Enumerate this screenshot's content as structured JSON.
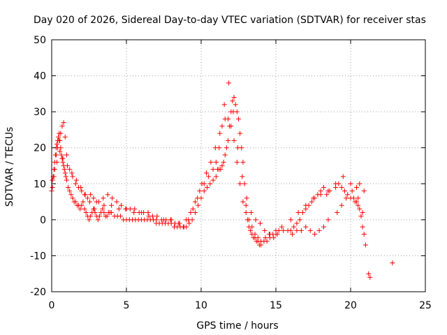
{
  "chart_data": {
    "type": "scatter",
    "title": "Day 020 of 2026, Sidereal Day-to-day VTEC variation (SDTVAR) for receiver stas",
    "xlabel": "GPS time / hours",
    "ylabel": "SDTVAR / TECUs",
    "xlim": [
      0,
      25
    ],
    "ylim": [
      -20,
      50
    ],
    "xticks": [
      "0",
      "5",
      "10",
      "15",
      "20",
      "25"
    ],
    "yticks": [
      "-20",
      "-10",
      "0",
      "10",
      "20",
      "30",
      "40",
      "50"
    ],
    "grid": true,
    "marker": "+",
    "color": "#ff0000",
    "series": [
      {
        "name": "SDTVAR",
        "x": [
          0.0,
          0.05,
          0.1,
          0.15,
          0.2,
          0.25,
          0.3,
          0.35,
          0.4,
          0.45,
          0.5,
          0.55,
          0.6,
          0.65,
          0.7,
          0.75,
          0.8,
          0.85,
          0.9,
          0.95,
          1.0,
          1.1,
          1.2,
          1.3,
          1.4,
          1.5,
          1.6,
          1.7,
          1.8,
          1.9,
          2.0,
          2.1,
          2.2,
          2.3,
          2.4,
          2.5,
          2.6,
          2.7,
          2.8,
          2.9,
          3.0,
          3.1,
          3.2,
          3.3,
          3.4,
          3.5,
          3.6,
          3.7,
          3.8,
          3.9,
          4.0,
          4.2,
          4.4,
          4.6,
          4.8,
          5.0,
          5.2,
          5.4,
          5.6,
          5.8,
          6.0,
          6.2,
          6.4,
          6.6,
          6.8,
          7.0,
          7.2,
          7.4,
          7.6,
          7.8,
          8.0,
          8.2,
          8.4,
          8.6,
          8.8,
          9.0,
          9.2,
          9.4,
          9.6,
          9.8,
          10.0,
          10.2,
          10.4,
          10.6,
          10.8,
          11.0,
          11.1,
          11.2,
          11.3,
          11.4,
          11.5,
          11.6,
          11.7,
          11.8,
          11.9,
          12.0,
          12.1,
          12.2,
          12.3,
          12.4,
          12.5,
          12.6,
          12.7,
          12.8,
          12.9,
          13.0,
          13.1,
          13.2,
          13.3,
          13.4,
          13.5,
          13.6,
          13.7,
          13.8,
          13.9,
          14.0,
          14.2,
          14.4,
          14.6,
          14.8,
          15.0,
          15.1,
          15.2,
          15.5,
          15.8,
          16.0,
          16.2,
          16.4,
          16.6,
          16.8,
          17.0,
          17.2,
          17.4,
          17.6,
          17.8,
          18.0,
          18.2,
          18.4,
          18.6,
          19.0,
          19.2,
          19.4,
          19.6,
          19.8,
          20.0,
          20.2,
          20.3,
          20.4,
          20.5,
          20.6,
          20.7,
          20.8,
          20.9,
          21.0,
          21.2,
          21.3,
          22.8,
          0.05,
          0.1,
          0.2,
          0.3,
          0.4,
          0.5,
          0.6,
          0.7,
          0.8,
          0.9,
          1.0,
          1.2,
          1.4,
          1.6,
          1.8,
          2.0,
          2.2,
          2.4,
          2.6,
          2.8,
          3.0,
          3.5,
          4.0,
          4.5,
          5.0,
          5.5,
          6.0,
          6.5,
          7.0,
          7.5,
          8.0,
          8.5,
          9.0,
          9.3,
          9.6,
          9.9,
          10.2,
          10.5,
          10.8,
          11.0,
          11.2,
          11.4,
          11.6,
          11.8,
          12.0,
          12.2,
          12.4,
          12.6,
          12.8,
          13.0,
          13.2,
          13.4,
          13.6,
          13.8,
          14.0,
          14.3,
          14.6,
          15.0,
          15.4,
          16.0,
          16.5,
          17.0,
          17.5,
          18.0,
          18.5,
          19.0,
          19.5,
          20.0,
          20.5,
          20.8,
          0.15,
          0.35,
          0.55,
          0.75,
          1.05,
          1.35,
          1.65,
          1.95,
          2.25,
          2.55,
          2.85,
          3.15,
          3.45,
          3.75,
          4.05,
          4.35,
          4.65,
          4.95,
          5.25,
          5.55,
          5.85,
          6.15,
          6.45,
          6.75,
          7.05,
          7.35,
          7.65,
          7.95,
          8.25,
          8.55,
          8.85,
          9.15,
          9.45,
          9.75,
          10.05,
          10.35,
          10.65,
          10.95,
          11.25,
          11.55,
          11.85,
          12.15,
          12.45,
          12.75,
          13.05,
          13.35,
          13.65,
          13.95,
          14.25,
          14.55,
          14.85,
          16.1,
          16.4,
          16.7,
          17.0,
          17.3,
          17.6,
          17.9,
          18.2,
          18.5,
          19.1,
          19.4,
          19.7,
          20.1,
          20.4,
          20.6,
          20.9
        ],
        "y": [
          8,
          11,
          12,
          14,
          16,
          18,
          20,
          21,
          22,
          23,
          24,
          22,
          20,
          18,
          17,
          16,
          15,
          14,
          13,
          12,
          11,
          9,
          8,
          7,
          6,
          5,
          5,
          4,
          4,
          3,
          4,
          5,
          3,
          2,
          1,
          0,
          1,
          2,
          3,
          2,
          1,
          0,
          1,
          2,
          3,
          2,
          1,
          1,
          2,
          2,
          2,
          1,
          1,
          1,
          0,
          0,
          0,
          0,
          0,
          0,
          0,
          0,
          0,
          0,
          0,
          -1,
          -1,
          -1,
          -1,
          -1,
          -1,
          -2,
          -2,
          -2,
          -2,
          -2,
          -1,
          0,
          2,
          4,
          6,
          8,
          9,
          10,
          11,
          12,
          14,
          14,
          14,
          15,
          16,
          18,
          20,
          22,
          26,
          30,
          33,
          34,
          32,
          30,
          28,
          24,
          20,
          16,
          10,
          4,
          0,
          -2,
          -3,
          -4,
          -5,
          -5,
          -6,
          -6,
          -7,
          -7,
          -6,
          -6,
          -5,
          -4,
          -4,
          -4,
          -3,
          -3,
          -3,
          -3,
          -2,
          -1,
          0,
          2,
          3,
          4,
          5,
          6,
          7,
          8,
          9,
          7,
          8,
          9,
          10,
          9,
          8,
          7,
          6,
          6,
          5,
          5,
          4,
          3,
          1,
          -2,
          -4,
          -7,
          -15,
          -16,
          -12,
          9,
          12,
          14,
          18,
          20,
          22,
          24,
          26,
          27,
          23,
          18,
          14,
          12,
          10,
          9,
          8,
          7,
          6,
          7,
          6,
          5,
          4,
          4,
          3,
          3,
          2,
          2,
          1,
          0,
          0,
          0,
          -1,
          0,
          2,
          5,
          8,
          10,
          12,
          14,
          16,
          20,
          26,
          28,
          28,
          26,
          22,
          16,
          10,
          5,
          2,
          0,
          -2,
          -4,
          -5,
          -6,
          -5,
          -4,
          -3,
          -2,
          0,
          2,
          4,
          6,
          7,
          8,
          10,
          12,
          10,
          6,
          2,
          12,
          16,
          19,
          17,
          15,
          13,
          11,
          9,
          7,
          5,
          3,
          5,
          6,
          7,
          6,
          5,
          4,
          3,
          3,
          3,
          2,
          2,
          2,
          1,
          1,
          0,
          0,
          0,
          -1,
          -1,
          -2,
          0,
          3,
          6,
          10,
          13,
          16,
          20,
          24,
          32,
          38,
          30,
          20,
          12,
          6,
          2,
          0,
          -1,
          -3,
          -4,
          -5,
          -4,
          -3,
          -3,
          -2,
          -3,
          -4,
          -3,
          -2,
          0,
          2,
          4,
          6,
          8,
          9,
          10,
          8
        ]
      }
    ]
  }
}
